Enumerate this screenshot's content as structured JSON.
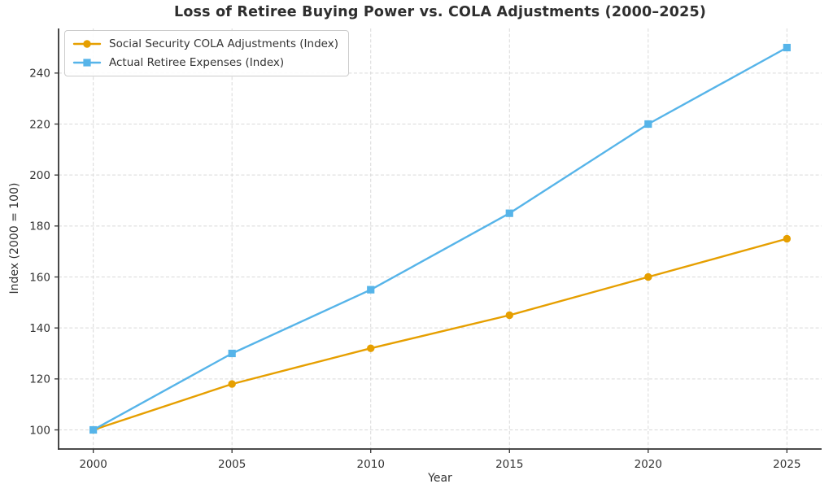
{
  "chart_data": {
    "type": "line",
    "title": "Loss of Retiree Buying Power vs. COLA Adjustments (2000–2025)",
    "xlabel": "Year",
    "ylabel": "Index (2000 = 100)",
    "x": [
      2000,
      2005,
      2010,
      2015,
      2020,
      2025
    ],
    "xticks": [
      "2000",
      "2005",
      "2010",
      "2015",
      "2020",
      "2025"
    ],
    "yticks": [
      "100",
      "120",
      "140",
      "160",
      "180",
      "200",
      "220",
      "240"
    ],
    "xlim": [
      1998.75,
      2026.25
    ],
    "ylim": [
      92.5,
      257.5
    ],
    "grid": true,
    "grid_style": "dashed",
    "legend_position": "upper-left",
    "series": [
      {
        "name": "Social Security COLA Adjustments (Index)",
        "values": [
          100,
          118,
          132,
          145,
          160,
          175
        ],
        "color": "#E69F00",
        "marker": "circle"
      },
      {
        "name": "Actual Retiree Expenses (Index)",
        "values": [
          100,
          130,
          155,
          185,
          220,
          250
        ],
        "color": "#56B4E9",
        "marker": "square"
      }
    ],
    "colors": {
      "title_text": "#2e2e2e",
      "tick_text": "#333333",
      "axis_spine": "#333333",
      "grid_line": "#d9d9d9",
      "background": "#ffffff",
      "legend_border": "#cccccc"
    }
  }
}
